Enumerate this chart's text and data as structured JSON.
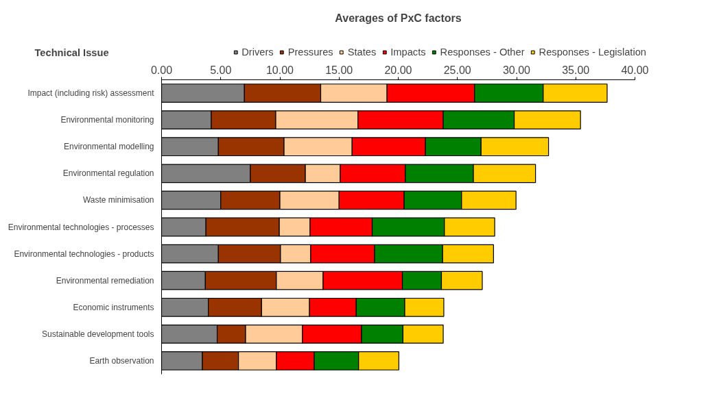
{
  "chart_data": {
    "type": "bar",
    "orientation": "horizontal",
    "stacked": true,
    "title": "Averages of PxC factors",
    "ylabel": "Technical Issue",
    "categories": [
      "Impact (including risk) assessment",
      "Environmental monitoring",
      "Environmental modelling",
      "Environmental regulation",
      "Waste minimisation",
      "Environmental technologies - processes",
      "Environmental technologies - products",
      "Environmental remediation",
      "Economic instruments",
      "Sustainable development tools",
      "Earth observation"
    ],
    "series": [
      {
        "name": "Drivers",
        "color": "#808080",
        "values": [
          7.0,
          4.2,
          4.8,
          7.5,
          5.0,
          3.75,
          4.8,
          3.7,
          3.95,
          4.7,
          3.45
        ]
      },
      {
        "name": "Pressures",
        "color": "#993300",
        "values": [
          6.45,
          5.45,
          5.55,
          4.65,
          5.0,
          6.2,
          5.25,
          6.0,
          4.5,
          2.4,
          3.05
        ]
      },
      {
        "name": "States",
        "color": "#ffcc99",
        "values": [
          5.6,
          6.95,
          5.75,
          2.95,
          5.0,
          2.6,
          2.55,
          3.95,
          4.05,
          4.8,
          3.2
        ]
      },
      {
        "name": "Impacts",
        "color": "#ff0000",
        "values": [
          7.4,
          7.2,
          6.2,
          5.5,
          5.5,
          5.25,
          5.4,
          6.7,
          3.95,
          5.0,
          3.2
        ]
      },
      {
        "name": "Responses - Other",
        "color": "#008000",
        "values": [
          5.8,
          6.0,
          4.7,
          5.75,
          4.85,
          6.1,
          5.75,
          3.3,
          4.1,
          3.5,
          3.75
        ]
      },
      {
        "name": "Responses - Legislation",
        "color": "#ffcc00",
        "values": [
          5.4,
          5.6,
          5.7,
          5.25,
          4.6,
          4.25,
          4.3,
          3.45,
          3.3,
          3.4,
          3.4
        ]
      }
    ],
    "xlim": [
      0,
      40
    ],
    "xticks": [
      {
        "value": 0,
        "label": "0.00"
      },
      {
        "value": 5,
        "label": "5.00"
      },
      {
        "value": 10,
        "label": "10.00"
      },
      {
        "value": 15,
        "label": "15.00"
      },
      {
        "value": 20,
        "label": "20.00"
      },
      {
        "value": 25,
        "label": "25.00"
      },
      {
        "value": 30,
        "label": "30.00"
      },
      {
        "value": 35,
        "label": "35.00"
      },
      {
        "value": 40,
        "label": "40.00"
      }
    ],
    "grid": false,
    "legend": "top"
  }
}
